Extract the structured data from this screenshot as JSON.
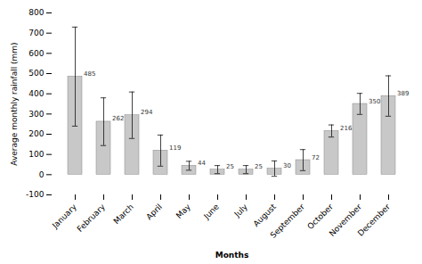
{
  "chart_data": {
    "type": "bar",
    "categories": [
      "January",
      "February",
      "March",
      "April",
      "May",
      "June",
      "July",
      "August",
      "September",
      "October",
      "November",
      "December"
    ],
    "values": [
      485,
      262,
      294,
      119,
      44,
      25,
      25,
      30,
      72,
      216,
      350,
      389
    ],
    "errors": [
      245,
      118,
      115,
      77,
      22,
      20,
      20,
      38,
      52,
      30,
      52,
      100
    ],
    "color": "#c8c8c8",
    "xlabel": "Months",
    "ylabel": "Average monthly rainfall (mm)",
    "ylim": [
      -100,
      800
    ],
    "yticks": [
      -100,
      0,
      100,
      200,
      300,
      400,
      500,
      600,
      700,
      800
    ],
    "data_labels": true,
    "grid": false
  }
}
